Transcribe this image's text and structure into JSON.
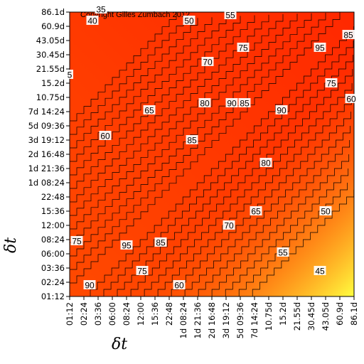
{
  "copyright": "Copyright Gilles Zumbach 2012",
  "chart_data": {
    "type": "heatmap",
    "title": "",
    "xlabel": "δt",
    "ylabel": "δt",
    "x_ticks": [
      "01:12",
      "02:24",
      "03:36",
      "06:00",
      "08:24",
      "12:00",
      "15:36",
      "22:48",
      "1d 08:24",
      "1d 21:36",
      "2d 16:48",
      "3d 19:12",
      "5d 09:36",
      "7d 14:24",
      "10.75d",
      "15.2d",
      "21.55d",
      "30.45d",
      "43.05d",
      "60.9d",
      "86.1d"
    ],
    "y_ticks": [
      "01:12",
      "02:24",
      "03:36",
      "06:00",
      "08:24",
      "12:00",
      "15:36",
      "22:48",
      "1d 08:24",
      "1d 21:36",
      "2d 16:48",
      "3d 19:12",
      "5d 09:36",
      "7d 14:24",
      "10.75d",
      "15.2d",
      "21.55d",
      "30.45d",
      "43.05d",
      "60.9d",
      "86.1d"
    ],
    "colorscale": [
      "#fffc24",
      "#ffb400",
      "#ff5a00",
      "#ff1000"
    ],
    "contour_levels": [
      35,
      40,
      45,
      50,
      55,
      60,
      65,
      70,
      75,
      80,
      85,
      90,
      95
    ],
    "contour_labels": [
      {
        "text": "35",
        "x": 2.2,
        "y": 20.2
      },
      {
        "text": "40",
        "x": 1.6,
        "y": 19.4
      },
      {
        "text": "50",
        "x": 8.4,
        "y": 19.4
      },
      {
        "text": "55",
        "x": 11.3,
        "y": 19.8
      },
      {
        "text": "75",
        "x": 12.2,
        "y": 17.5
      },
      {
        "text": "95",
        "x": 17.6,
        "y": 17.5
      },
      {
        "text": "85",
        "x": 19.6,
        "y": 18.4
      },
      {
        "text": "70",
        "x": 9.7,
        "y": 16.5
      },
      {
        "text": "75",
        "x": 18.4,
        "y": 15.0
      },
      {
        "text": "60",
        "x": 19.8,
        "y": 13.9
      },
      {
        "text": "80",
        "x": 9.5,
        "y": 13.6
      },
      {
        "text": "90",
        "x": 11.4,
        "y": 13.6
      },
      {
        "text": "85",
        "x": 12.3,
        "y": 13.6
      },
      {
        "text": "90",
        "x": 14.9,
        "y": 13.1
      },
      {
        "text": "65",
        "x": 5.6,
        "y": 13.1
      },
      {
        "text": "60",
        "x": 2.5,
        "y": 11.3
      },
      {
        "text": "85",
        "x": 8.6,
        "y": 11.0
      },
      {
        "text": "80",
        "x": 13.8,
        "y": 9.4
      },
      {
        "text": "65",
        "x": 13.1,
        "y": 6.0
      },
      {
        "text": "50",
        "x": 18.0,
        "y": 6.0
      },
      {
        "text": "70",
        "x": 11.2,
        "y": 5.0
      },
      {
        "text": "95",
        "x": 4.0,
        "y": 3.6
      },
      {
        "text": "85",
        "x": 6.4,
        "y": 3.8
      },
      {
        "text": "75",
        "x": 0.5,
        "y": 3.9
      },
      {
        "text": "55",
        "x": 15.0,
        "y": 3.1
      },
      {
        "text": "45",
        "x": 17.6,
        "y": 1.8
      },
      {
        "text": "75",
        "x": 5.1,
        "y": 1.8
      },
      {
        "text": "60",
        "x": 7.7,
        "y": 0.8
      },
      {
        "text": "90",
        "x": 1.4,
        "y": 0.8
      },
      {
        "text": "5",
        "x": 0.0,
        "y": 15.6
      }
    ]
  }
}
